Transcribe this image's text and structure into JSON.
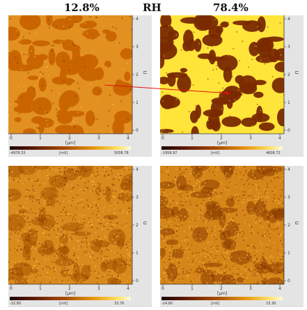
{
  "header": {
    "left_label": "12.8%",
    "middle_label": "RH",
    "right_label": "78.4%"
  },
  "axis": {
    "x_unit": "[µm]",
    "x_ticks": [
      "0",
      "1",
      "2",
      "3",
      "4"
    ],
    "y_ticks": [
      "4",
      "3",
      "2",
      "1",
      "0"
    ]
  },
  "panels": [
    {
      "id": "top-left",
      "cbar_min": "-4978.33",
      "cbar_unit": "[mV]",
      "cbar_max": "5008.78"
    },
    {
      "id": "top-right",
      "cbar_min": "-1958.97",
      "cbar_unit": "[mV]",
      "cbar_max": "4608.72"
    },
    {
      "id": "bottom-left",
      "cbar_min": "-32.80",
      "cbar_unit": "[mV]",
      "cbar_max": "33.76"
    },
    {
      "id": "bottom-right",
      "cbar_min": "-24.60",
      "cbar_unit": "[mV]",
      "cbar_max": "23.30"
    }
  ],
  "colors": {
    "arrow": "#e01010",
    "dark_domain": "#7a2a00",
    "mid_domain": "#c86400",
    "bright_domain": "#ffe43a"
  }
}
